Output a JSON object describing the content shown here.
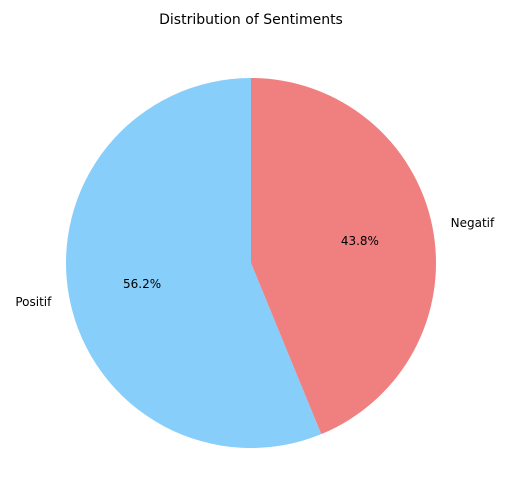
{
  "chart_data": {
    "type": "pie",
    "title": "Distribution of Sentiments",
    "start_angle": 90,
    "direction": "counterclockwise",
    "slices": [
      {
        "label": "Positif",
        "value": 56.2,
        "percent_label": "56.2%",
        "color": "#87CEFA"
      },
      {
        "label": "Negatif",
        "value": 43.8,
        "percent_label": "43.8%",
        "color": "#F08080"
      }
    ]
  }
}
